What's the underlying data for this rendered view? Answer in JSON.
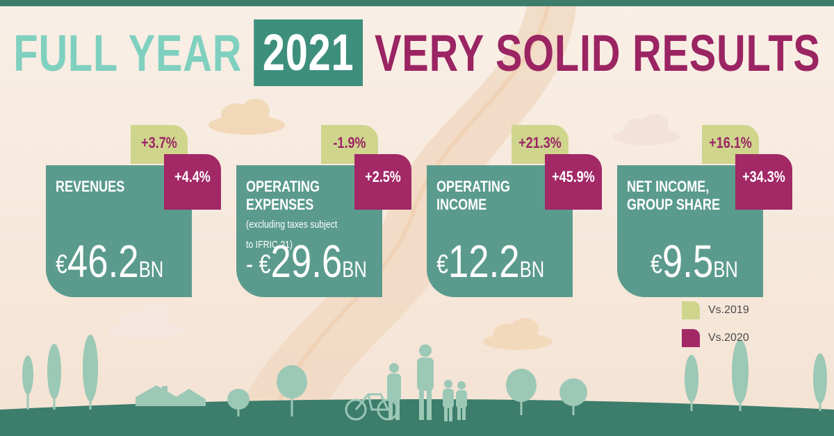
{
  "title": {
    "part1": "FULL YEAR",
    "part2": "2021",
    "part3": "VERY SOLID RESULTS"
  },
  "colors": {
    "teal_light": "#7fd0bf",
    "teal_dark": "#3d8f7c",
    "card": "#5b9b8d",
    "plum": "#9b2463",
    "lime": "#cfd58d",
    "magenta": "#a22866",
    "background": "#f7ebe0"
  },
  "cards": [
    {
      "label": "REVENUES",
      "label_note": "",
      "value_prefix": "€",
      "value": "46.2",
      "unit": "BN",
      "vs2019": "+3.7%",
      "vs2020": "+4.4%"
    },
    {
      "label": "OPERATING EXPENSES",
      "label_note": "(excluding taxes subject to IFRIC 21)",
      "value_prefix": "- €",
      "value": "29.6",
      "unit": "BN",
      "vs2019": "-1.9%",
      "vs2020": "+2.5%"
    },
    {
      "label": "OPERATING INCOME",
      "label_note": "",
      "value_prefix": "€",
      "value": "12.2",
      "unit": "BN",
      "vs2019": "+21.3%",
      "vs2020": "+45.9%"
    },
    {
      "label": "NET INCOME, GROUP SHARE",
      "label_note": "",
      "value_prefix": "€",
      "value": "9.5",
      "unit": "BN",
      "vs2019": "+16.1%",
      "vs2020": "+34.3%"
    }
  ],
  "legend": {
    "vs2019": "Vs.2019",
    "vs2020": "Vs.2020"
  },
  "icons": [
    "cloud-icon",
    "tree-icon",
    "house-icon",
    "bicycle-icon",
    "people-silhouette-icon"
  ]
}
